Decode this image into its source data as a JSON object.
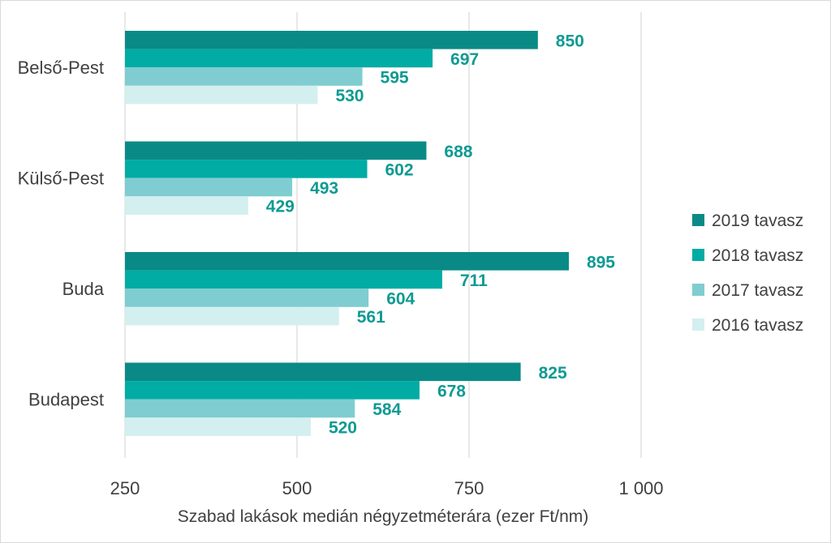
{
  "chart_data": {
    "type": "bar",
    "orientation": "horizontal",
    "categories": [
      "Belső-Pest",
      "Külső-Pest",
      "Buda",
      "Budapest"
    ],
    "series": [
      {
        "name": "2019 tavasz",
        "color": "#0a8a86",
        "values": [
          850,
          688,
          895,
          825
        ]
      },
      {
        "name": "2018 tavasz",
        "color": "#00aca4",
        "values": [
          697,
          602,
          711,
          678
        ]
      },
      {
        "name": "2017 tavasz",
        "color": "#7fcdd0",
        "values": [
          595,
          493,
          604,
          584
        ]
      },
      {
        "name": "2016 tavasz",
        "color": "#d4eff0",
        "values": [
          530,
          429,
          561,
          520
        ]
      }
    ],
    "data_labels": [
      [
        "850",
        "697",
        "595",
        "530"
      ],
      [
        "688",
        "602",
        "493",
        "429"
      ],
      [
        "895",
        "711",
        "604",
        "561"
      ],
      [
        "825",
        "678",
        "584",
        "520"
      ]
    ],
    "xlim": [
      250,
      1000
    ],
    "xticks": [
      250,
      500,
      750,
      1000
    ],
    "xtick_labels": [
      "250",
      "500",
      "750",
      "1 000"
    ],
    "xlabel": "Szabad lakások medián négyzetméterára (ezer Ft/nm)",
    "ylabel": "",
    "title": "",
    "grid": "vertical",
    "legend_position": "right",
    "label_color": "#0e9a93"
  }
}
